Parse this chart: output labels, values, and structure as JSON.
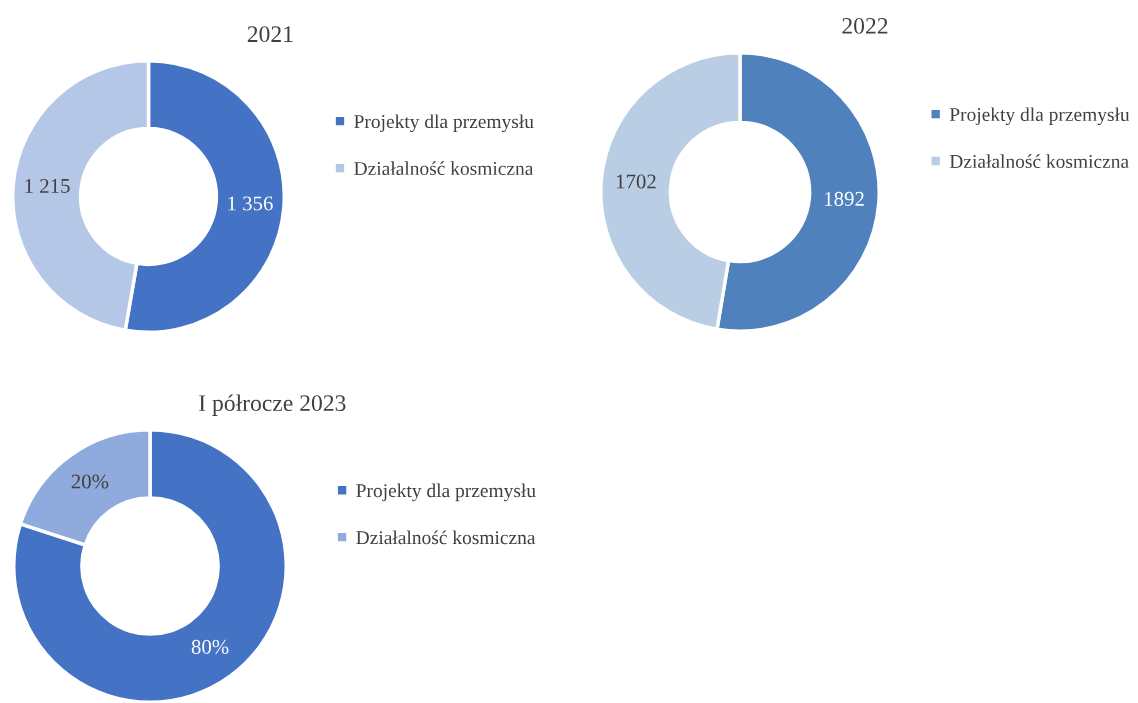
{
  "chart_data": [
    {
      "type": "donut",
      "title": "2021",
      "categories": [
        "Projekty dla przemysłu",
        "Działalność kosmiczna"
      ],
      "values": [
        1356,
        1215
      ],
      "colors": [
        "#4472c4",
        "#b4c7e7"
      ],
      "value_labels": [
        "1 356",
        "1 215"
      ],
      "legend": "right"
    },
    {
      "type": "donut",
      "title": "2022",
      "categories": [
        "Projekty dla przemysłu",
        "Działalność kosmiczna"
      ],
      "values": [
        1892,
        1702
      ],
      "colors": [
        "#4f81bd",
        "#b9cde5"
      ],
      "data_labels": true,
      "legend": "right"
    },
    {
      "type": "donut",
      "title": "I półrocze 2023",
      "categories": [
        "Projekty dla przemysłu",
        "Działalność kosmiczna"
      ],
      "values": [
        80,
        20
      ],
      "colors": [
        "#4472c4",
        "#8faadc"
      ],
      "value_labels": [
        "80%",
        "20%"
      ],
      "legend": "right"
    }
  ]
}
